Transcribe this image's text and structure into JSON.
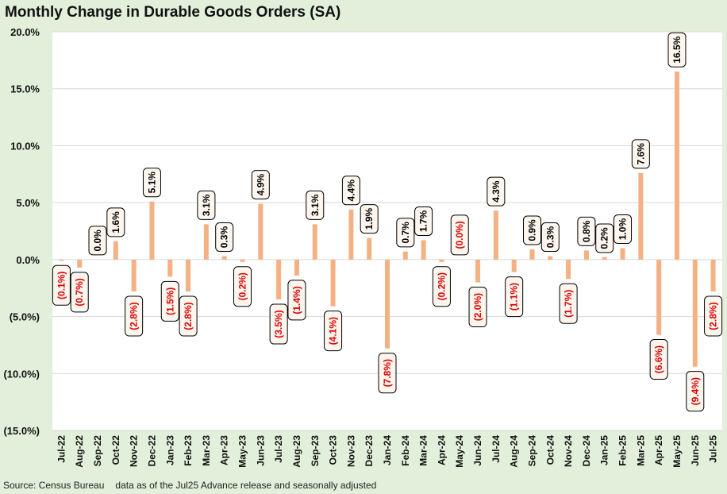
{
  "colors": {
    "frame": "#e2efda",
    "plot_bg": "#ffffff",
    "bar": "#f4b183",
    "grid": "#d9d9d9",
    "pos_label": "#000000",
    "neg_label": "#e00000",
    "label_box_bg": "#fdf6ee"
  },
  "chart_data": {
    "type": "bar",
    "title": "Monthly Change in Durable Goods Orders (SA)",
    "xlabel": "",
    "ylabel": "",
    "ylim": [
      -15,
      20
    ],
    "yticks": [
      20,
      15,
      10,
      5,
      0,
      -5,
      -10,
      -15
    ],
    "ytick_labels": [
      "20.0%",
      "15.0%",
      "10.0%",
      "5.0%",
      "0.0%",
      "(5.0%)",
      "(10.0%)",
      "(15.0%)"
    ],
    "grid": true,
    "legend": "none",
    "categories": [
      "Jul-22",
      "Aug-22",
      "Sep-22",
      "Oct-22",
      "Nov-22",
      "Dec-22",
      "Jan-23",
      "Feb-23",
      "Mar-23",
      "Apr-23",
      "May-23",
      "Jun-23",
      "Jul-23",
      "Aug-23",
      "Sep-23",
      "Oct-23",
      "Nov-23",
      "Dec-23",
      "Jan-24",
      "Feb-24",
      "Mar-24",
      "Apr-24",
      "May-24",
      "Jun-24",
      "Jul-24",
      "Aug-24",
      "Sep-24",
      "Oct-24",
      "Nov-24",
      "Dec-24",
      "Jan-25",
      "Feb-25",
      "Mar-25",
      "Apr-25",
      "May-25",
      "Jun-25",
      "Jul-25"
    ],
    "values": [
      -0.1,
      -0.7,
      0.0,
      1.6,
      -2.8,
      5.1,
      -1.5,
      -2.8,
      3.1,
      0.3,
      -0.2,
      4.9,
      -3.5,
      -1.4,
      3.1,
      -4.1,
      4.4,
      1.9,
      -7.8,
      0.7,
      1.7,
      -0.2,
      0.0,
      -2.0,
      4.3,
      -1.1,
      0.9,
      0.3,
      -1.7,
      0.8,
      0.2,
      1.0,
      7.6,
      -6.6,
      16.5,
      -9.4,
      -2.8
    ],
    "data_labels": [
      "(0.1%)",
      "(0.7%)",
      "0.0%",
      "1.6%",
      "(2.8%)",
      "5.1%",
      "(1.5%)",
      "(2.8%)",
      "3.1%",
      "0.3%",
      "(0.2%)",
      "4.9%",
      "(3.5%)",
      "(1.4%)",
      "3.1%",
      "(4.1%)",
      "4.4%",
      "1.9%",
      "(7.8%)",
      "0.7%",
      "1.7%",
      "(0.2%)",
      "(0.0%)",
      "(2.0%)",
      "4.3%",
      "(1.1%)",
      "0.9%",
      "0.3%",
      "(1.7%)",
      "0.8%",
      "0.2%",
      "1.0%",
      "7.6%",
      "(6.6%)",
      "16.5%",
      "(9.4%)",
      "(2.8%)"
    ]
  },
  "footer": {
    "source": "Source: Census Bureau",
    "note": "data as of the Jul25 Advance release and seasonally adjusted"
  }
}
